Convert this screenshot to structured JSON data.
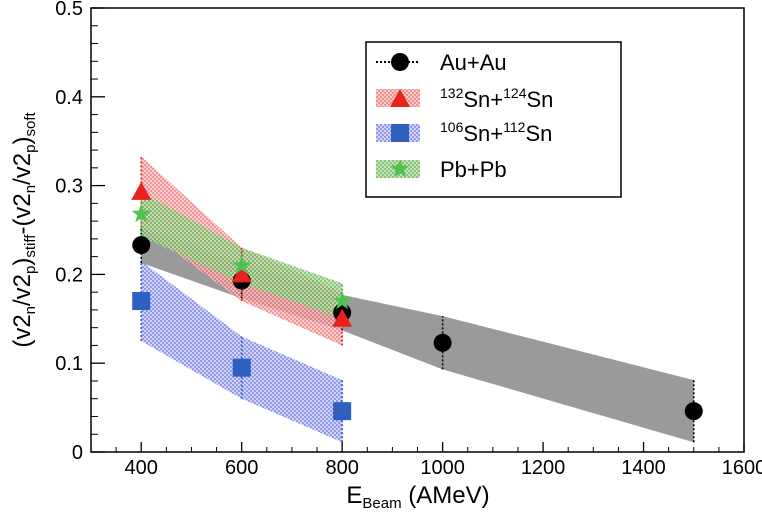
{
  "chart_data": {
    "type": "scatter",
    "xlim": [
      300,
      1600
    ],
    "ylim": [
      0,
      0.5
    ],
    "grid": false,
    "legend_position": "top-right",
    "x_ticks": [
      400,
      600,
      800,
      1000,
      1200,
      1400,
      1600
    ],
    "y_ticks": [
      0,
      0.1,
      0.2,
      0.3,
      0.4,
      0.5
    ],
    "x_tick_labels": [
      "400",
      "600",
      "800",
      "1000",
      "1200",
      "1400",
      "1600"
    ],
    "y_tick_labels": [
      "0",
      "0.1",
      "0.2",
      "0.3",
      "0.4",
      "0.5"
    ],
    "xlabel": {
      "main": "E",
      "sub": "Beam",
      "rest": " (AMeV)"
    },
    "ylabel": {
      "open1": "(v2",
      "s1": "n",
      "slash1": "/v2",
      "s2": "p",
      "close1": ")",
      "s3": "stiff",
      "mid": "-(v2",
      "s4": "n",
      "slash2": "/v2",
      "s5": "p",
      "close2": ")",
      "s6": "soft"
    },
    "series": [
      {
        "key": "auau",
        "name": "Au+Au",
        "name_parts": {
          "text": "Au+Au"
        },
        "color": "#000000",
        "band_color": "#999999",
        "marker": "circle",
        "x": [
          400,
          600,
          800,
          1000,
          1500
        ],
        "y": [
          0.233,
          0.193,
          0.157,
          0.123,
          0.046
        ],
        "err": [
          0.02,
          0.02,
          0.02,
          0.03,
          0.035
        ],
        "band_lower": [
          0.213,
          0.173,
          0.137,
          0.093,
          0.011
        ],
        "band_upper": [
          0.253,
          0.213,
          0.177,
          0.153,
          0.081
        ]
      },
      {
        "key": "sn132",
        "name": "132Sn+124Sn",
        "name_parts": {
          "sup1": "132",
          "t1": "Sn+",
          "sup2": "124",
          "t2": "Sn"
        },
        "color": "#e8231e",
        "band_color": "#f08c8c",
        "marker": "triangle",
        "x": [
          400,
          600,
          800
        ],
        "y": [
          0.293,
          0.2,
          0.15
        ],
        "err": [
          0.04,
          0.03,
          0.03
        ],
        "band_lower": [
          0.253,
          0.17,
          0.12
        ],
        "band_upper": [
          0.333,
          0.23,
          0.18
        ]
      },
      {
        "key": "sn106",
        "name": "106Sn+112Sn",
        "name_parts": {
          "sup1": "106",
          "t1": "Sn+",
          "sup2": "112",
          "t2": "Sn"
        },
        "color": "#2f5fbf",
        "band_color": "#6f7fe0",
        "marker": "square",
        "x": [
          400,
          600,
          800
        ],
        "y": [
          0.17,
          0.095,
          0.046
        ],
        "err": [
          0.045,
          0.035,
          0.035
        ],
        "band_lower": [
          0.125,
          0.06,
          0.011
        ],
        "band_upper": [
          0.215,
          0.13,
          0.081
        ]
      },
      {
        "key": "pbpb",
        "name": "Pb+Pb",
        "name_parts": {
          "text": "Pb+Pb"
        },
        "color": "#4fc24f",
        "band_color": "#7fcf5f",
        "marker": "star",
        "x": [
          400,
          600,
          800
        ],
        "y": [
          0.268,
          0.21,
          0.17
        ],
        "err": [
          0.025,
          0.02,
          0.02
        ],
        "band_lower": [
          0.243,
          0.19,
          0.15
        ],
        "band_upper": [
          0.293,
          0.23,
          0.19
        ]
      }
    ]
  }
}
